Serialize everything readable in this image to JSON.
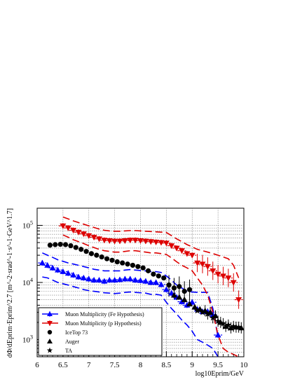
{
  "chart_data": {
    "type": "scatter",
    "xlabel": "log10Eprim/GeV",
    "ylabel": "dΦ/dEprim·Eprim^2.7 [m^-2·srad^-1·s^-1·GeV^1.7]",
    "xlim": [
      6,
      10
    ],
    "ylim": [
      500,
      200000
    ],
    "y_scale": "log",
    "grid": true,
    "legend_position": "bottom-left",
    "x_ticks": [
      "6",
      "6.5",
      "7",
      "7.5",
      "8",
      "8.5",
      "9",
      "9.5",
      "10"
    ],
    "y_ticks": [
      {
        "value": 1000,
        "label": "10",
        "exp": "3"
      },
      {
        "value": 10000,
        "label": "10",
        "exp": "4"
      },
      {
        "value": 100000,
        "label": "10",
        "exp": "5"
      }
    ],
    "series": [
      {
        "name": "Muon Multiplicity (Fe Hypothesis)",
        "color": "#0000ff",
        "marker": "triangle-up",
        "x": [
          6.1,
          6.2,
          6.3,
          6.4,
          6.5,
          6.6,
          6.7,
          6.8,
          6.9,
          7.0,
          7.1,
          7.2,
          7.3,
          7.4,
          7.5,
          7.6,
          7.7,
          7.8,
          7.9,
          8.0,
          8.1,
          8.2,
          8.3,
          8.4,
          8.5,
          8.6,
          8.7,
          8.8,
          8.9,
          9.0,
          9.1,
          9.2,
          9.3,
          9.4,
          9.5
        ],
        "y": [
          22000,
          20000,
          18000,
          16500,
          15500,
          14500,
          13500,
          12500,
          12000,
          11500,
          11000,
          11000,
          10500,
          11000,
          11000,
          11200,
          11500,
          11500,
          11000,
          10800,
          10500,
          10000,
          10000,
          9200,
          7500,
          6500,
          5500,
          4600,
          4000,
          4500,
          3400,
          3100,
          3100,
          2700,
          1200
        ],
        "band_upper": [
          33000,
          30000,
          27500,
          25000,
          23500,
          22000,
          21000,
          20000,
          19000,
          18000,
          17000,
          16500,
          16000,
          16000,
          16000,
          16000,
          16500,
          16800,
          16500,
          16200,
          16000,
          15500,
          15500,
          15000,
          13000,
          11000,
          9000,
          8000,
          7000,
          6800,
          6700,
          6700,
          6700,
          3500,
          1100
        ],
        "band_lower": [
          12500,
          12000,
          11000,
          10000,
          9500,
          9000,
          8500,
          8000,
          7500,
          7200,
          7000,
          6800,
          6600,
          6500,
          6400,
          6500,
          6700,
          6800,
          6700,
          6600,
          6500,
          6200,
          6200,
          6000,
          4500,
          3500,
          2800,
          2200,
          1800,
          1400,
          1000,
          900,
          800,
          700,
          500
        ]
      },
      {
        "name": "Muon Multiplicity (p Hypothesis)",
        "color": "#dd0000",
        "marker": "triangle-down",
        "x": [
          6.5,
          6.6,
          6.7,
          6.8,
          6.9,
          7.0,
          7.1,
          7.2,
          7.3,
          7.4,
          7.5,
          7.6,
          7.7,
          7.8,
          7.9,
          8.0,
          8.1,
          8.2,
          8.3,
          8.4,
          8.5,
          8.6,
          8.7,
          8.8,
          8.9,
          9.0,
          9.1,
          9.2,
          9.3,
          9.4,
          9.5,
          9.6,
          9.7,
          9.8,
          9.9
        ],
        "y": [
          98000,
          90000,
          82000,
          76000,
          71000,
          66000,
          62000,
          58000,
          55000,
          54000,
          53000,
          53000,
          54000,
          55000,
          55000,
          54000,
          53000,
          52000,
          51000,
          50000,
          49000,
          44000,
          40000,
          36000,
          32000,
          30000,
          22000,
          21000,
          19000,
          16000,
          14000,
          13000,
          12000,
          10000,
          5000
        ],
        "band_upper": [
          140000,
          130000,
          120000,
          112000,
          105000,
          98000,
          92000,
          86000,
          82000,
          80000,
          79000,
          79000,
          80000,
          81000,
          81000,
          80000,
          79000,
          78000,
          77000,
          76000,
          75000,
          66000,
          58000,
          52000,
          46000,
          42000,
          38000,
          36000,
          34000,
          32000,
          30000,
          28000,
          26000,
          20000,
          12000
        ],
        "band_lower": [
          68000,
          62000,
          56000,
          52000,
          48000,
          44000,
          41000,
          38000,
          36000,
          35000,
          34000,
          34000,
          35000,
          36000,
          36000,
          35000,
          34000,
          33000,
          33000,
          32000,
          31000,
          27000,
          23000,
          20000,
          18000,
          16000,
          12000,
          9000,
          6000,
          3000,
          1200,
          700,
          600,
          550,
          500
        ]
      },
      {
        "name": "IceTop 73",
        "color": "#000000",
        "marker": "circle",
        "x": [
          6.25,
          6.35,
          6.45,
          6.55,
          6.65,
          6.75,
          6.85,
          6.95,
          7.05,
          7.15,
          7.25,
          7.35,
          7.45,
          7.55,
          7.65,
          7.75,
          7.85,
          7.95,
          8.05,
          8.15,
          8.25,
          8.35,
          8.45,
          8.55,
          8.65,
          8.75,
          8.85,
          8.95
        ],
        "y": [
          45000,
          46000,
          46500,
          46000,
          44000,
          41000,
          38000,
          35000,
          32000,
          30000,
          28000,
          26000,
          24500,
          23000,
          22000,
          21000,
          20000,
          19000,
          18000,
          16000,
          14000,
          13000,
          12000,
          9000,
          8000,
          8500,
          7000,
          7500
        ]
      },
      {
        "name": "Auger",
        "color": "#000000",
        "marker": "triangle-up",
        "x": [
          8.65,
          8.75,
          8.85,
          8.95,
          9.05,
          9.15,
          9.25,
          9.35,
          9.45,
          9.55,
          9.65,
          9.75,
          9.85,
          9.95
        ],
        "y": [
          6000,
          5500,
          5000,
          4200,
          3700,
          3400,
          3200,
          3000,
          2600,
          2000,
          1700,
          1600,
          1650,
          1600
        ]
      },
      {
        "name": "TA",
        "color": "#000000",
        "marker": "star",
        "x": [
          9.1,
          9.2,
          9.3,
          9.4,
          9.5,
          9.6,
          9.7,
          9.8,
          9.9
        ],
        "y": [
          3200,
          3000,
          2800,
          2400,
          2100,
          1900,
          1800,
          1700,
          1650
        ]
      }
    ]
  }
}
